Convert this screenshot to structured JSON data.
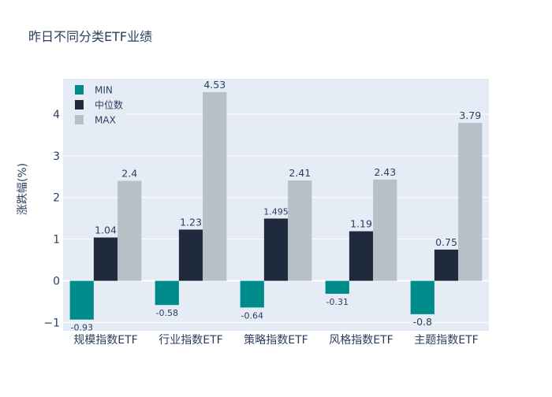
{
  "chart_data": {
    "type": "bar",
    "title": "昨日不同分类ETF业绩",
    "xlabel": "",
    "ylabel": "涨跌幅(%)",
    "ylim": [
      -1.2,
      4.85
    ],
    "yticks": [
      -1,
      0,
      1,
      2,
      3,
      4
    ],
    "ytick_labels": [
      "−1",
      "0",
      "1",
      "2",
      "3",
      "4"
    ],
    "categories": [
      "规模指数ETF",
      "行业指数ETF",
      "策略指数ETF",
      "风格指数ETF",
      "主题指数ETF"
    ],
    "series": [
      {
        "name": "MIN",
        "color": "#008b8b",
        "values": [
          -0.93,
          -0.58,
          -0.64,
          -0.31,
          -0.8
        ],
        "labels": [
          "-0.93",
          "-0.58",
          "-0.64",
          "-0.31",
          "-0.8"
        ]
      },
      {
        "name": "中位数",
        "color": "#1f2a3c",
        "values": [
          1.04,
          1.23,
          1.495,
          1.19,
          0.75
        ],
        "labels": [
          "1.04",
          "1.23",
          "1.495",
          "1.19",
          "0.75"
        ]
      },
      {
        "name": "MAX",
        "color": "#b7bfc7",
        "values": [
          2.4,
          4.53,
          2.41,
          2.43,
          3.79
        ],
        "labels": [
          "2.4",
          "4.53",
          "2.41",
          "2.43",
          "3.79"
        ]
      }
    ],
    "legend_position": "top-left",
    "grid": true,
    "plot_background": "#e5ecf6",
    "text_color": "#2a3f5f"
  }
}
